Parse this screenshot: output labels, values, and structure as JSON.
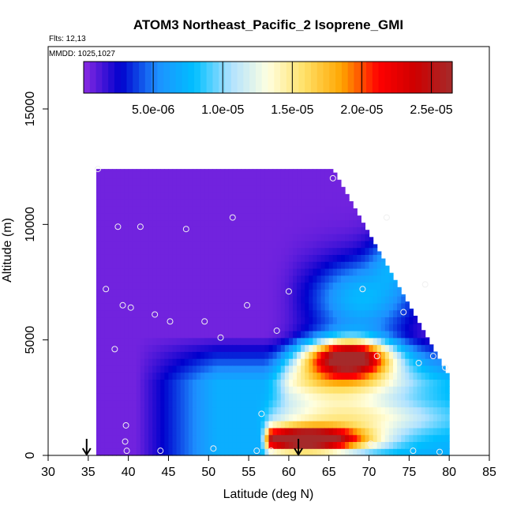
{
  "chart_data": {
    "type": "heatmap",
    "title": "ATOM3 Northeast_Pacific_2 Isoprene_GMI",
    "flights_note": "Flts: 12,13",
    "date_note": "MMDD: 1025,1027",
    "xlabel": "Latitude (deg N)",
    "ylabel": "Altitude (m)",
    "xlim": [
      30,
      85
    ],
    "ylim": [
      0,
      17700
    ],
    "x_ticks": [
      "30",
      "35",
      "40",
      "45",
      "50",
      "55",
      "60",
      "65",
      "70",
      "75",
      "80",
      "85"
    ],
    "y_ticks": [
      "0",
      "5000",
      "10000",
      "15000"
    ],
    "colorbar": {
      "range": [
        0,
        2.65e-05
      ],
      "tick_labels": [
        "5.0e-06",
        "1.0e-05",
        "1.5e-05",
        "2.0e-05",
        "2.5e-05"
      ],
      "tick_values": [
        5e-06,
        1e-05,
        1.5e-05,
        2e-05,
        2.5e-05
      ],
      "colors": [
        "#8B2BE2",
        "#0000CD",
        "#1E90FF",
        "#00BFFF",
        "#B0E2FF",
        "#FFFFE0",
        "#FFE066",
        "#FFA500",
        "#FF0000",
        "#CD0000",
        "#A52A2A"
      ]
    },
    "arrows_latitude": [
      34.8,
      61.2
    ],
    "flight_points": [
      {
        "lat": 36.2,
        "alt": 12400
      },
      {
        "lat": 65.5,
        "alt": 12000
      },
      {
        "lat": 38.7,
        "alt": 9900
      },
      {
        "lat": 41.5,
        "alt": 9900
      },
      {
        "lat": 47.2,
        "alt": 9800
      },
      {
        "lat": 53.0,
        "alt": 10300
      },
      {
        "lat": 72.2,
        "alt": 10300
      },
      {
        "lat": 37.2,
        "alt": 7200
      },
      {
        "lat": 60.0,
        "alt": 7100
      },
      {
        "lat": 69.2,
        "alt": 7200
      },
      {
        "lat": 77.0,
        "alt": 7400
      },
      {
        "lat": 39.3,
        "alt": 6500
      },
      {
        "lat": 40.3,
        "alt": 6400
      },
      {
        "lat": 54.8,
        "alt": 6500
      },
      {
        "lat": 43.3,
        "alt": 6100
      },
      {
        "lat": 45.2,
        "alt": 5800
      },
      {
        "lat": 49.5,
        "alt": 5800
      },
      {
        "lat": 74.3,
        "alt": 6200
      },
      {
        "lat": 58.5,
        "alt": 5400
      },
      {
        "lat": 51.5,
        "alt": 5100
      },
      {
        "lat": 38.3,
        "alt": 4600
      },
      {
        "lat": 71.0,
        "alt": 4300
      },
      {
        "lat": 78.0,
        "alt": 4300
      },
      {
        "lat": 76.2,
        "alt": 4000
      },
      {
        "lat": 79.5,
        "alt": 3800
      },
      {
        "lat": 56.6,
        "alt": 1800
      },
      {
        "lat": 39.7,
        "alt": 1300
      },
      {
        "lat": 39.6,
        "alt": 600
      },
      {
        "lat": 70.2,
        "alt": 500
      },
      {
        "lat": 39.8,
        "alt": 200
      },
      {
        "lat": 44.0,
        "alt": 200
      },
      {
        "lat": 50.6,
        "alt": 300
      },
      {
        "lat": 56.0,
        "alt": 200
      },
      {
        "lat": 57.8,
        "alt": 200
      },
      {
        "lat": 75.5,
        "alt": 200
      },
      {
        "lat": 78.8,
        "alt": 150
      }
    ]
  }
}
